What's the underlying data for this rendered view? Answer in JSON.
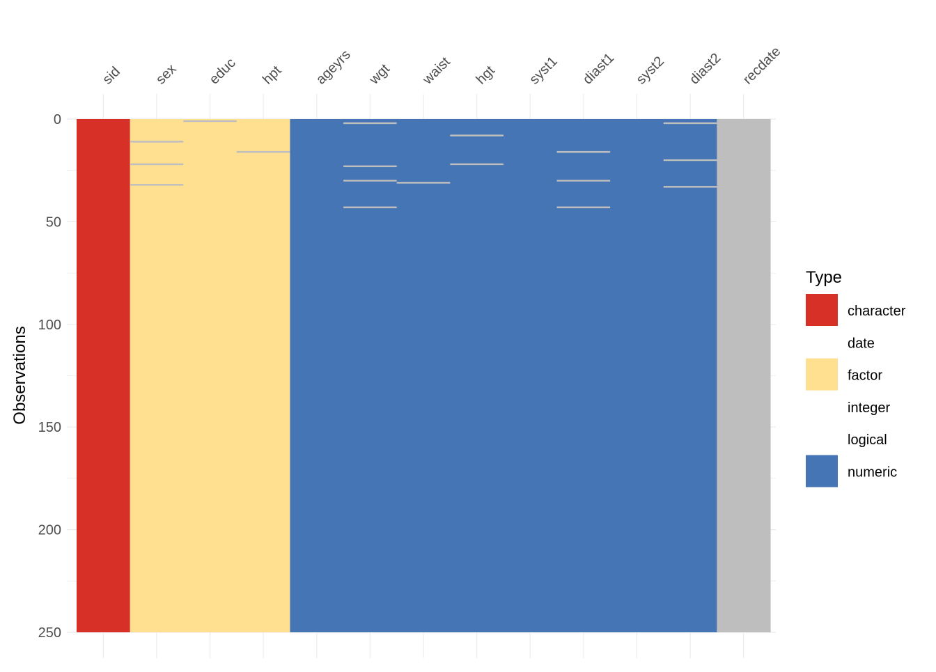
{
  "chart_data": {
    "type": "heatmap",
    "title": "",
    "xlabel": "",
    "ylabel": "Observations",
    "ylim": [
      0,
      250
    ],
    "y_ticks": [
      0,
      50,
      100,
      150,
      200,
      250
    ],
    "y_reversed": true,
    "x_axis_position": "top",
    "grid": true,
    "legend_title": "Type",
    "legend_position": "right",
    "legend": [
      {
        "label": "character",
        "color": "#D73027"
      },
      {
        "label": "date",
        "color": null
      },
      {
        "label": "factor",
        "color": "#FEE090"
      },
      {
        "label": "integer",
        "color": null
      },
      {
        "label": "logical",
        "color": null
      },
      {
        "label": "numeric",
        "color": "#4575B4"
      }
    ],
    "missing_color": "#BEBEBE",
    "columns": [
      {
        "name": "sid",
        "type": "character",
        "missing_rows": []
      },
      {
        "name": "sex",
        "type": "factor",
        "missing_rows": [
          11,
          22,
          32
        ]
      },
      {
        "name": "educ",
        "type": "factor",
        "missing_rows": [
          1
        ]
      },
      {
        "name": "hpt",
        "type": "factor",
        "missing_rows": [
          16
        ]
      },
      {
        "name": "ageyrs",
        "type": "numeric",
        "missing_rows": []
      },
      {
        "name": "wgt",
        "type": "numeric",
        "missing_rows": [
          2,
          23,
          30,
          43
        ]
      },
      {
        "name": "waist",
        "type": "numeric",
        "missing_rows": [
          31
        ]
      },
      {
        "name": "hgt",
        "type": "numeric",
        "missing_rows": [
          8,
          22
        ]
      },
      {
        "name": "syst1",
        "type": "numeric",
        "missing_rows": []
      },
      {
        "name": "diast1",
        "type": "numeric",
        "missing_rows": [
          16,
          30,
          43
        ]
      },
      {
        "name": "syst2",
        "type": "numeric",
        "missing_rows": []
      },
      {
        "name": "diast2",
        "type": "numeric",
        "missing_rows": [
          2,
          20,
          33
        ]
      },
      {
        "name": "recdate",
        "type": "missing",
        "missing_rows": []
      }
    ]
  }
}
